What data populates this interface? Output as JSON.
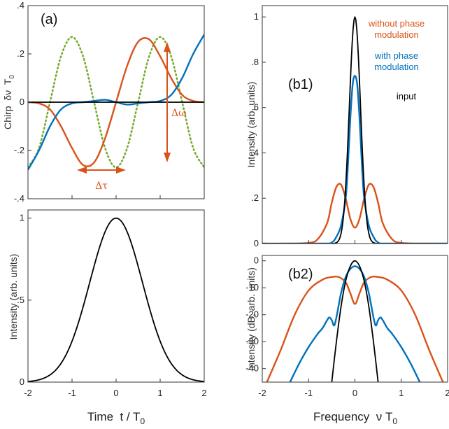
{
  "colors": {
    "orange": "#d95319",
    "blue": "#0072bd",
    "black": "#000000",
    "green": "#77ac30"
  },
  "annotations": {
    "delta_omega": "Δω",
    "delta_tau": "Δτ"
  },
  "chart_data": [
    {
      "id": "a-top",
      "type": "line",
      "panel_label": "(a)",
      "ylabel": "Chirp  δν  T0",
      "xlim": [
        -2,
        2
      ],
      "ylim": [
        -0.4,
        0.4
      ],
      "yticks": [
        -0.4,
        -0.2,
        0,
        0.2,
        0.4
      ],
      "ytick_labels": [
        "-.4",
        "-.2",
        "0",
        ".2",
        ".4"
      ],
      "series": [
        {
          "color": "green",
          "style": "dotted",
          "x": [
            -2,
            -1.75,
            -1.5,
            -1.25,
            -1,
            -0.75,
            -0.5,
            -0.25,
            0,
            0.25,
            0.5,
            0.75,
            1,
            1.25,
            1.5,
            1.75,
            2
          ],
          "y": [
            -0.27,
            -0.19,
            0.0,
            0.19,
            0.27,
            0.19,
            0.0,
            -0.19,
            -0.27,
            -0.19,
            0.0,
            0.19,
            0.27,
            0.19,
            0.0,
            -0.19,
            -0.27
          ]
        },
        {
          "color": "orange",
          "style": "solid",
          "x": [
            -2,
            -1.75,
            -1.5,
            -1.25,
            -1,
            -0.75,
            -0.5,
            -0.25,
            0,
            0.25,
            0.5,
            0.75,
            1,
            1.25,
            1.5,
            1.75,
            2
          ],
          "y": [
            0.0,
            -0.005,
            -0.03,
            -0.1,
            -0.19,
            -0.26,
            -0.25,
            -0.15,
            0.0,
            0.15,
            0.25,
            0.26,
            0.19,
            0.1,
            0.03,
            0.005,
            0.0
          ]
        },
        {
          "color": "blue",
          "style": "solid",
          "x": [
            -2,
            -1.75,
            -1.5,
            -1.25,
            -1,
            -0.75,
            -0.5,
            -0.25,
            0,
            0.25,
            0.5,
            0.75,
            1,
            1.25,
            1.5,
            1.75,
            2
          ],
          "y": [
            -0.28,
            -0.2,
            -0.1,
            -0.03,
            -0.005,
            0.0,
            0.005,
            0.01,
            0.0,
            -0.01,
            -0.005,
            0.0,
            0.005,
            0.03,
            0.1,
            0.2,
            0.28
          ]
        },
        {
          "color": "black",
          "style": "solid",
          "x": [
            -2,
            2
          ],
          "y": [
            0,
            0
          ]
        }
      ]
    },
    {
      "id": "a-bottom",
      "type": "line",
      "ylabel": "Intensity (arb. units)",
      "xlabel": "Time  t / T0",
      "xlim": [
        -2,
        2
      ],
      "ylim": [
        0,
        1.05
      ],
      "xticks": [
        -2,
        -1,
        0,
        1,
        2
      ],
      "xtick_labels": [
        "-2",
        "-1",
        "0",
        "1",
        "2"
      ],
      "yticks": [
        0,
        0.5,
        1
      ],
      "ytick_labels": [
        "0",
        ".5",
        "1"
      ],
      "series": [
        {
          "color": "black",
          "style": "solid",
          "shape": "gaussian",
          "amplitude": 1.0,
          "center": 0,
          "sigma": 0.6
        }
      ]
    },
    {
      "id": "b1",
      "type": "line",
      "panel_label": "(b1)",
      "ylabel": "Intensity (arb. units)",
      "xlim": [
        -2,
        2
      ],
      "ylim": [
        0,
        1.05
      ],
      "yticks": [
        0,
        0.2,
        0.4,
        0.6,
        0.8,
        1
      ],
      "ytick_labels": [
        "0",
        ".2",
        ".4",
        ".6",
        ".8",
        "1"
      ],
      "legend": [
        {
          "label": "without phase modulation",
          "color": "orange"
        },
        {
          "label": "with phase modulation",
          "color": "blue"
        },
        {
          "label": "input",
          "color": "black"
        }
      ],
      "series": [
        {
          "color": "orange",
          "style": "solid",
          "x": [
            -2,
            -1.5,
            -1,
            -0.8,
            -0.6,
            -0.5,
            -0.4,
            -0.3,
            -0.2,
            -0.1,
            0,
            0.1,
            0.2,
            0.3,
            0.4,
            0.5,
            0.6,
            0.8,
            1,
            1.5,
            2
          ],
          "y": [
            0,
            0,
            0.003,
            0.02,
            0.09,
            0.18,
            0.25,
            0.26,
            0.2,
            0.11,
            0.07,
            0.11,
            0.2,
            0.26,
            0.25,
            0.18,
            0.09,
            0.02,
            0.003,
            0,
            0
          ]
        },
        {
          "color": "blue",
          "style": "solid",
          "x": [
            -2,
            -0.7,
            -0.5,
            -0.4,
            -0.3,
            -0.2,
            -0.15,
            -0.1,
            -0.05,
            0,
            0.05,
            0.1,
            0.15,
            0.2,
            0.3,
            0.4,
            0.5,
            0.7,
            2
          ],
          "y": [
            0,
            0,
            0.005,
            0.03,
            0.08,
            0.2,
            0.35,
            0.55,
            0.7,
            0.74,
            0.7,
            0.55,
            0.35,
            0.2,
            0.08,
            0.03,
            0.005,
            0,
            0
          ]
        },
        {
          "color": "black",
          "style": "solid",
          "shape": "gaussian",
          "amplitude": 1.0,
          "center": 0,
          "sigma": 0.12
        }
      ]
    },
    {
      "id": "b2",
      "type": "line",
      "panel_label": "(b2)",
      "ylabel": "Intensity (dB, arb. units)",
      "xlabel": "Frequency  ν T0",
      "xlim": [
        -2,
        2
      ],
      "ylim": [
        -45,
        2
      ],
      "xticks": [
        -2,
        -1,
        0,
        1,
        2
      ],
      "xtick_labels": [
        "-2",
        "-1",
        "0",
        "1",
        "2"
      ],
      "yticks": [
        0,
        -10,
        -20,
        -30,
        -40
      ],
      "ytick_labels": [
        "0",
        "-10",
        "-20",
        "-30",
        "-40"
      ],
      "series": [
        {
          "color": "orange",
          "style": "solid",
          "x": [
            -1.9,
            -1.6,
            -1.3,
            -1,
            -0.7,
            -0.5,
            -0.35,
            -0.2,
            -0.1,
            0,
            0.1,
            0.2,
            0.35,
            0.5,
            0.7,
            1,
            1.3,
            1.6,
            1.9
          ],
          "y": [
            -45,
            -33,
            -20,
            -11,
            -7,
            -6,
            -6,
            -8,
            -12,
            -16,
            -12,
            -8,
            -6,
            -6,
            -7,
            -11,
            -20,
            -33,
            -45
          ]
        },
        {
          "color": "blue",
          "style": "solid",
          "x": [
            -1.4,
            -1.2,
            -1.0,
            -0.8,
            -0.7,
            -0.6,
            -0.55,
            -0.5,
            -0.45,
            -0.4,
            -0.3,
            -0.2,
            -0.1,
            0,
            0.1,
            0.2,
            0.3,
            0.4,
            0.45,
            0.5,
            0.55,
            0.6,
            0.7,
            0.8,
            1.0,
            1.2,
            1.4
          ],
          "y": [
            -45,
            -38,
            -32,
            -27,
            -25,
            -22,
            -21,
            -22,
            -24,
            -21,
            -12,
            -6,
            -3,
            -2,
            -3,
            -6,
            -12,
            -21,
            -24,
            -22,
            -21,
            -22,
            -25,
            -27,
            -32,
            -38,
            -45
          ]
        },
        {
          "color": "black",
          "style": "solid",
          "x": [
            -0.5,
            -0.4,
            -0.3,
            -0.2,
            -0.1,
            0,
            0.1,
            0.2,
            0.3,
            0.4,
            0.5
          ],
          "y": [
            -45,
            -30,
            -17,
            -7.5,
            -2,
            0,
            -2,
            -7.5,
            -17,
            -30,
            -45
          ]
        }
      ]
    }
  ]
}
